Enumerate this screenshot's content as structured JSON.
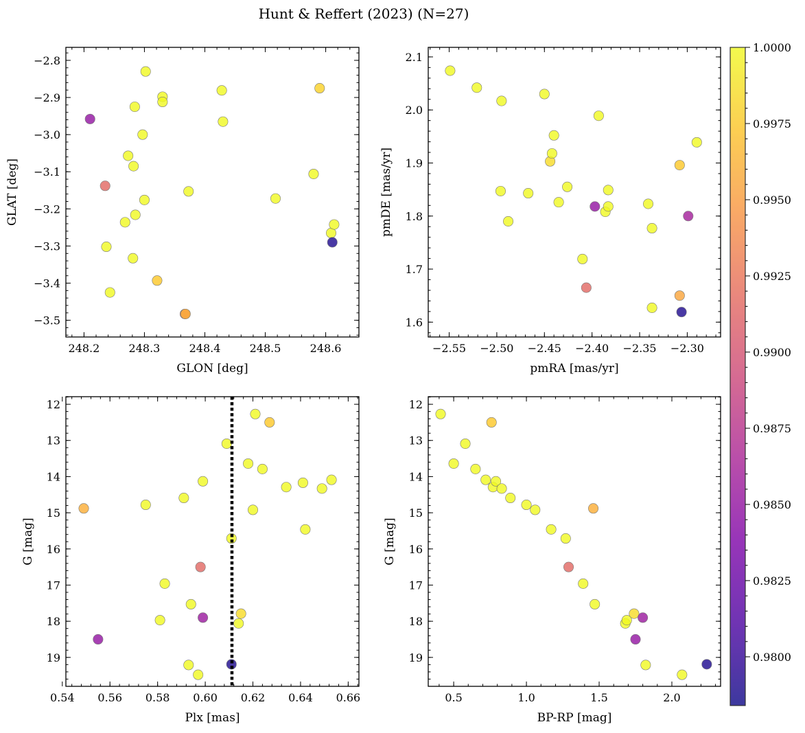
{
  "figure": {
    "title": "Hunt & Reffert (2023) (N=27)"
  },
  "colorbar": {
    "cmap": "plasma",
    "range": [
      0.9784,
      1.0
    ],
    "ticks": [
      0.98,
      0.9825,
      0.985,
      0.9875,
      0.99,
      0.9925,
      0.995,
      0.9975,
      1.0
    ],
    "tick_labels": [
      "0.9800",
      "0.9825",
      "0.9850",
      "0.9875",
      "0.9900",
      "0.9925",
      "0.9950",
      "0.9975",
      "1.0000"
    ]
  },
  "chart_data": [
    {
      "type": "scatter",
      "panel": "top-left",
      "xlabel": "GLON [deg]",
      "ylabel": "GLAT [deg]",
      "xlim": [
        248.17,
        248.655
      ],
      "ylim": [
        -3.545,
        -2.765
      ],
      "y_inverted": false,
      "xticks": [
        248.2,
        248.3,
        248.4,
        248.5,
        248.6
      ],
      "xtick_labels": [
        "248.2",
        "248.3",
        "248.4",
        "248.5",
        "248.6"
      ],
      "yticks": [
        -3.5,
        -3.4,
        -3.3,
        -3.2,
        -3.1,
        -3.0,
        -2.9,
        -2.8
      ],
      "ytick_labels": [
        "−3.5",
        "−3.4",
        "−3.3",
        "−3.2",
        "−3.1",
        "−3.0",
        "−2.9",
        "−2.8"
      ],
      "points": [
        {
          "x": 248.21,
          "y": -2.958,
          "c": 0.985
        },
        {
          "x": 248.235,
          "y": -3.138,
          "c": 0.9915
        },
        {
          "x": 248.237,
          "y": -3.302,
          "c": 1.0
        },
        {
          "x": 248.243,
          "y": -3.425,
          "c": 1.0
        },
        {
          "x": 248.268,
          "y": -3.236,
          "c": 1.0
        },
        {
          "x": 248.273,
          "y": -3.057,
          "c": 1.0
        },
        {
          "x": 248.281,
          "y": -3.333,
          "c": 1.0
        },
        {
          "x": 248.282,
          "y": -3.085,
          "c": 1.0
        },
        {
          "x": 248.284,
          "y": -2.925,
          "c": 1.0
        },
        {
          "x": 248.285,
          "y": -3.216,
          "c": 1.0
        },
        {
          "x": 248.297,
          "y": -3.0,
          "c": 1.0
        },
        {
          "x": 248.3,
          "y": -3.176,
          "c": 1.0
        },
        {
          "x": 248.302,
          "y": -2.83,
          "c": 1.0
        },
        {
          "x": 248.321,
          "y": -3.393,
          "c": 0.9975
        },
        {
          "x": 248.33,
          "y": -2.898,
          "c": 1.0
        },
        {
          "x": 248.33,
          "y": -2.912,
          "c": 1.0
        },
        {
          "x": 248.367,
          "y": -3.483,
          "c": 0.993
        },
        {
          "x": 248.368,
          "y": -3.483,
          "c": 0.996
        },
        {
          "x": 248.373,
          "y": -3.153,
          "c": 1.0
        },
        {
          "x": 248.428,
          "y": -2.881,
          "c": 1.0
        },
        {
          "x": 248.43,
          "y": -2.965,
          "c": 1.0
        },
        {
          "x": 248.517,
          "y": -3.172,
          "c": 1.0
        },
        {
          "x": 248.58,
          "y": -3.106,
          "c": 1.0
        },
        {
          "x": 248.59,
          "y": -2.875,
          "c": 0.998
        },
        {
          "x": 248.609,
          "y": -3.265,
          "c": 1.0
        },
        {
          "x": 248.611,
          "y": -3.29,
          "c": 0.979
        },
        {
          "x": 248.614,
          "y": -3.242,
          "c": 1.0
        }
      ]
    },
    {
      "type": "scatter",
      "panel": "top-right",
      "xlabel": "pmRA [mas/yr]",
      "ylabel": "pmDE [mas/yr]",
      "xlim": [
        -2.572,
        -2.265
      ],
      "ylim": [
        1.572,
        2.118
      ],
      "y_inverted": false,
      "xticks": [
        -2.55,
        -2.5,
        -2.45,
        -2.4,
        -2.35,
        -2.3
      ],
      "xtick_labels": [
        "−2.55",
        "−2.50",
        "−2.45",
        "−2.40",
        "−2.35",
        "−2.30"
      ],
      "yticks": [
        1.6,
        1.7,
        1.8,
        1.9,
        2.0,
        2.1
      ],
      "ytick_labels": [
        "1.6",
        "1.7",
        "1.8",
        "1.9",
        "2.0",
        "2.1"
      ],
      "points": [
        {
          "x": -2.549,
          "y": 2.074,
          "c": 1.0
        },
        {
          "x": -2.521,
          "y": 2.042,
          "c": 1.0
        },
        {
          "x": -2.495,
          "y": 2.017,
          "c": 1.0
        },
        {
          "x": -2.496,
          "y": 1.847,
          "c": 1.0
        },
        {
          "x": -2.488,
          "y": 1.79,
          "c": 1.0
        },
        {
          "x": -2.467,
          "y": 1.843,
          "c": 1.0
        },
        {
          "x": -2.45,
          "y": 2.03,
          "c": 1.0
        },
        {
          "x": -2.444,
          "y": 1.903,
          "c": 0.9985
        },
        {
          "x": -2.442,
          "y": 1.918,
          "c": 1.0
        },
        {
          "x": -2.44,
          "y": 1.952,
          "c": 1.0
        },
        {
          "x": -2.435,
          "y": 1.826,
          "c": 1.0
        },
        {
          "x": -2.426,
          "y": 1.855,
          "c": 1.0
        },
        {
          "x": -2.41,
          "y": 1.719,
          "c": 1.0
        },
        {
          "x": -2.406,
          "y": 1.665,
          "c": 0.9915
        },
        {
          "x": -2.397,
          "y": 1.818,
          "c": 0.985
        },
        {
          "x": -2.393,
          "y": 1.989,
          "c": 1.0
        },
        {
          "x": -2.386,
          "y": 1.808,
          "c": 1.0
        },
        {
          "x": -2.383,
          "y": 1.818,
          "c": 1.0
        },
        {
          "x": -2.383,
          "y": 1.849,
          "c": 1.0
        },
        {
          "x": -2.341,
          "y": 1.823,
          "c": 1.0
        },
        {
          "x": -2.337,
          "y": 1.777,
          "c": 1.0
        },
        {
          "x": -2.337,
          "y": 1.627,
          "c": 1.0
        },
        {
          "x": -2.308,
          "y": 1.896,
          "c": 0.9975
        },
        {
          "x": -2.308,
          "y": 1.65,
          "c": 0.9955
        },
        {
          "x": -2.306,
          "y": 1.619,
          "c": 0.979
        },
        {
          "x": -2.299,
          "y": 1.8,
          "c": 0.986
        },
        {
          "x": -2.29,
          "y": 1.939,
          "c": 1.0
        }
      ]
    },
    {
      "type": "scatter",
      "panel": "bottom-left",
      "xlabel": "Plx [mas]",
      "ylabel": "G [mag]",
      "xlim": [
        0.5415,
        0.6645
      ],
      "ylim": [
        11.79,
        19.8
      ],
      "y_inverted": true,
      "xticks": [
        0.54,
        0.56,
        0.58,
        0.6,
        0.62,
        0.64,
        0.66
      ],
      "xtick_labels": [
        "0.54",
        "0.56",
        "0.58",
        "0.60",
        "0.62",
        "0.64",
        "0.66"
      ],
      "yticks": [
        12,
        13,
        14,
        15,
        16,
        17,
        18,
        19
      ],
      "ytick_labels": [
        "12",
        "13",
        "14",
        "15",
        "16",
        "17",
        "18",
        "19"
      ],
      "vline": {
        "x": 0.6112,
        "style": "dotted"
      },
      "points": [
        {
          "x": 0.549,
          "y": 14.88,
          "c": 0.996
        },
        {
          "x": 0.555,
          "y": 18.5,
          "c": 0.985
        },
        {
          "x": 0.575,
          "y": 14.78,
          "c": 1.0
        },
        {
          "x": 0.581,
          "y": 17.97,
          "c": 1.0
        },
        {
          "x": 0.583,
          "y": 16.96,
          "c": 1.0
        },
        {
          "x": 0.591,
          "y": 14.59,
          "c": 1.0
        },
        {
          "x": 0.593,
          "y": 19.21,
          "c": 1.0
        },
        {
          "x": 0.594,
          "y": 17.53,
          "c": 1.0
        },
        {
          "x": 0.597,
          "y": 19.48,
          "c": 1.0
        },
        {
          "x": 0.598,
          "y": 16.5,
          "c": 0.9915
        },
        {
          "x": 0.599,
          "y": 14.13,
          "c": 1.0
        },
        {
          "x": 0.599,
          "y": 17.9,
          "c": 0.9855
        },
        {
          "x": 0.609,
          "y": 13.09,
          "c": 1.0
        },
        {
          "x": 0.611,
          "y": 15.71,
          "c": 1.0
        },
        {
          "x": 0.611,
          "y": 19.19,
          "c": 0.979
        },
        {
          "x": 0.614,
          "y": 18.06,
          "c": 1.0
        },
        {
          "x": 0.615,
          "y": 17.79,
          "c": 0.9985
        },
        {
          "x": 0.618,
          "y": 13.64,
          "c": 1.0
        },
        {
          "x": 0.62,
          "y": 14.92,
          "c": 1.0
        },
        {
          "x": 0.621,
          "y": 12.27,
          "c": 1.0
        },
        {
          "x": 0.624,
          "y": 13.79,
          "c": 1.0
        },
        {
          "x": 0.627,
          "y": 12.5,
          "c": 0.9975
        },
        {
          "x": 0.634,
          "y": 14.29,
          "c": 1.0
        },
        {
          "x": 0.641,
          "y": 14.17,
          "c": 1.0
        },
        {
          "x": 0.642,
          "y": 15.46,
          "c": 1.0
        },
        {
          "x": 0.649,
          "y": 14.33,
          "c": 1.0
        },
        {
          "x": 0.653,
          "y": 14.09,
          "c": 1.0
        }
      ]
    },
    {
      "type": "scatter",
      "panel": "bottom-right",
      "xlabel": "BP-RP [mag]",
      "ylabel": "G [mag]",
      "xlim": [
        0.325,
        2.335
      ],
      "ylim": [
        11.79,
        19.8
      ],
      "y_inverted": true,
      "xticks": [
        0.5,
        1.0,
        1.5,
        2.0
      ],
      "xtick_labels": [
        "0.5",
        "1.0",
        "1.5",
        "2.0"
      ],
      "yticks": [
        12,
        13,
        14,
        15,
        16,
        17,
        18,
        19
      ],
      "ytick_labels": [
        "12",
        "13",
        "14",
        "15",
        "16",
        "17",
        "18",
        "19"
      ],
      "points": [
        {
          "x": 0.41,
          "y": 12.27,
          "c": 1.0
        },
        {
          "x": 0.5,
          "y": 13.64,
          "c": 1.0
        },
        {
          "x": 0.58,
          "y": 13.09,
          "c": 1.0
        },
        {
          "x": 0.65,
          "y": 13.79,
          "c": 1.0
        },
        {
          "x": 0.72,
          "y": 14.09,
          "c": 1.0
        },
        {
          "x": 0.76,
          "y": 12.5,
          "c": 0.9975
        },
        {
          "x": 0.77,
          "y": 14.29,
          "c": 1.0
        },
        {
          "x": 0.79,
          "y": 14.13,
          "c": 1.0
        },
        {
          "x": 0.83,
          "y": 14.33,
          "c": 1.0
        },
        {
          "x": 0.89,
          "y": 14.59,
          "c": 1.0
        },
        {
          "x": 1.0,
          "y": 14.78,
          "c": 1.0
        },
        {
          "x": 1.06,
          "y": 14.92,
          "c": 1.0
        },
        {
          "x": 1.17,
          "y": 15.46,
          "c": 1.0
        },
        {
          "x": 1.27,
          "y": 15.71,
          "c": 1.0
        },
        {
          "x": 1.29,
          "y": 16.5,
          "c": 0.9915
        },
        {
          "x": 1.39,
          "y": 16.96,
          "c": 1.0
        },
        {
          "x": 1.46,
          "y": 14.88,
          "c": 0.996
        },
        {
          "x": 1.47,
          "y": 17.53,
          "c": 1.0
        },
        {
          "x": 1.68,
          "y": 18.06,
          "c": 1.0
        },
        {
          "x": 1.69,
          "y": 17.97,
          "c": 1.0
        },
        {
          "x": 1.74,
          "y": 17.79,
          "c": 0.9985
        },
        {
          "x": 1.75,
          "y": 18.5,
          "c": 0.985
        },
        {
          "x": 1.8,
          "y": 17.9,
          "c": 0.9855
        },
        {
          "x": 1.82,
          "y": 19.21,
          "c": 1.0
        },
        {
          "x": 2.07,
          "y": 19.48,
          "c": 1.0
        },
        {
          "x": 2.24,
          "y": 19.19,
          "c": 0.979
        }
      ]
    }
  ]
}
